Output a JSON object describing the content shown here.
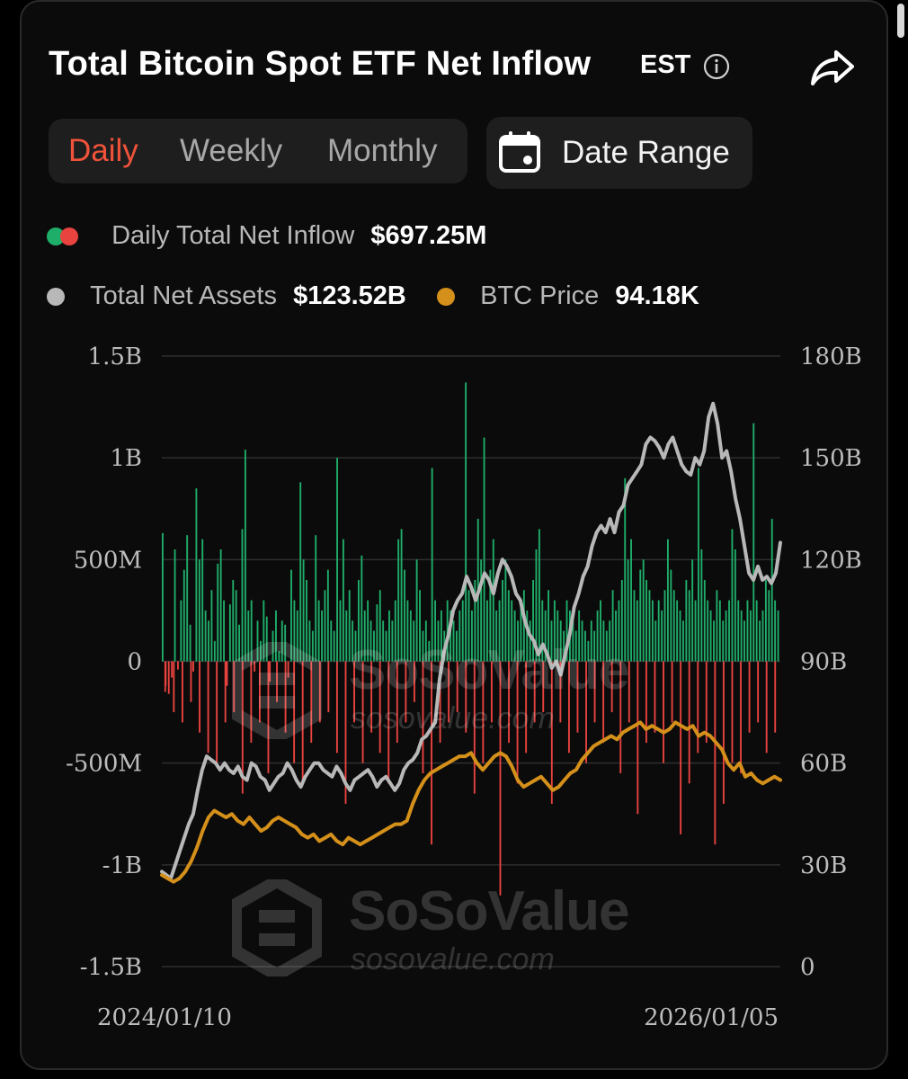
{
  "header": {
    "title": "Total Bitcoin Spot ETF Net Inflow",
    "timezone": "EST"
  },
  "tabs": [
    {
      "label": "Daily",
      "active": true
    },
    {
      "label": "Weekly",
      "active": false
    },
    {
      "label": "Monthly",
      "active": false
    }
  ],
  "date_range": {
    "label": "Date Range"
  },
  "legend": {
    "inflow": {
      "label": "Daily Total Net Inflow",
      "value": "$697.25M"
    },
    "assets": {
      "label": "Total Net Assets",
      "value": "$123.52B"
    },
    "price": {
      "label": "BTC Price",
      "value": "94.18K"
    }
  },
  "watermark": {
    "brand": "SoSoValue",
    "url": "sosovalue.com"
  },
  "colors": {
    "inflow_positive": "#1fae6a",
    "inflow_negative": "#e8433f",
    "net_assets": "#b8b8b8",
    "btc_price": "#d4901a",
    "active_tab": "#f0523a"
  },
  "chart_data": {
    "type": "bar",
    "title": "Total Bitcoin Spot ETF Net Inflow",
    "x_start": "2024/01/10",
    "x_end": "2026/01/05",
    "left_axis": {
      "ticks": [
        "1.5B",
        "1B",
        "500M",
        "0",
        "-500M",
        "-1B",
        "-1.5B"
      ],
      "range": [
        -1.5,
        1.5
      ],
      "unit": "B USD"
    },
    "right_axis": {
      "ticks": [
        "180B",
        "150B",
        "120B",
        "90B",
        "60B",
        "30B",
        "0"
      ],
      "range": [
        0,
        180
      ],
      "unit": "B USD"
    },
    "x_tick_labels": [
      "2024/01/10",
      "2026/01/05"
    ],
    "grid": true,
    "series": [
      {
        "name": "Daily Total Net Inflow",
        "kind": "bar",
        "axis": "left",
        "values": [
          0.63,
          -0.12,
          -0.16,
          -0.08,
          0.55,
          -0.04,
          0.3,
          0.45,
          0.62,
          0.18,
          -0.05,
          0.85,
          0.5,
          0.6,
          0.25,
          0.2,
          0.35,
          0.1,
          0.48,
          0.55,
          0.3,
          -0.12,
          0.28,
          0.4,
          0.35,
          0.18,
          0.65,
          1.04,
          0.25,
          0.3,
          -0.05,
          0.2,
          0.1,
          0.3,
          0.22,
          -0.1,
          0.15,
          0.25,
          0.05,
          0.2,
          0.18,
          -0.08,
          0.45,
          0.3,
          0.25,
          0.88,
          0.5,
          0.4,
          0.2,
          0.15,
          0.62,
          0.3,
          0.25,
          0.35,
          0.45,
          0.2,
          0.15,
          1.0,
          0.3,
          0.6,
          0.25,
          0.35,
          0.2,
          0.15,
          0.4,
          0.52,
          0.25,
          0.3,
          0.2,
          0.15,
          0.28,
          0.35,
          0.2,
          0.15,
          0.25,
          0.2,
          0.3,
          0.6,
          0.65,
          0.45,
          0.3,
          0.25,
          0.2,
          0.5,
          0.35,
          0.15,
          0.2,
          0.1,
          0.95,
          0.3,
          0.2,
          0.25,
          0.15,
          0.3,
          0.25,
          0.2,
          0.15,
          0.25,
          0.3,
          1.37,
          0.35,
          0.25,
          0.4,
          0.7,
          0.5,
          1.1,
          0.3,
          0.45,
          0.6,
          0.25,
          0.3,
          0.4,
          0.5,
          0.35,
          0.3,
          0.25,
          0.2,
          0.3,
          0.35,
          0.25,
          0.2,
          0.4,
          0.55,
          0.65,
          0.3,
          0.25,
          0.35,
          0.2,
          0.3,
          0.25,
          0.2,
          0.15,
          0.3,
          0.25,
          0.2,
          0.15,
          0.25,
          0.2,
          0.15,
          0.1,
          0.2,
          0.15,
          0.25,
          0.3,
          0.2,
          0.15,
          0.2,
          0.35,
          0.25,
          0.3,
          0.4,
          0.9,
          0.5,
          0.6,
          0.35,
          0.3,
          0.45,
          0.5,
          0.4,
          0.35,
          0.3,
          0.2,
          0.3,
          0.25,
          0.35,
          0.6,
          0.45,
          0.35,
          0.3,
          0.25,
          0.2,
          0.4,
          0.35,
          0.5,
          0.3,
          0.95,
          0.55,
          0.4,
          0.3,
          0.25,
          0.2,
          0.35,
          0.3,
          0.2,
          0.25,
          0.3,
          0.65,
          0.55,
          0.3,
          0.25,
          0.2,
          0.3,
          0.25,
          1.17,
          0.3,
          0.2,
          0.25,
          0.4,
          0.35,
          0.7,
          0.3,
          0.25
        ],
        "negatives": [
          -0.15,
          -0.25,
          -0.3,
          -0.2,
          -0.35,
          -0.45,
          -0.5,
          -0.3,
          -0.25,
          -0.65,
          -0.4,
          -0.3,
          -0.55,
          -0.2,
          -0.35,
          -0.5,
          -0.6,
          -0.4,
          -0.3,
          -0.25,
          -0.45,
          -0.7,
          -0.3,
          -0.5,
          -0.35,
          -0.45,
          -0.6,
          -0.4,
          -0.3,
          -0.2,
          -0.55,
          -0.9,
          -0.4,
          -0.3,
          -0.25,
          -0.35,
          -0.65,
          -0.5,
          -0.3,
          -1.15,
          -0.4,
          -0.6,
          -0.45,
          -0.3,
          -0.25,
          -0.7,
          -0.3,
          -0.45,
          -0.35,
          -0.5,
          -0.3,
          -0.4,
          -0.25,
          -0.55,
          -0.3,
          -0.75,
          -0.4,
          -0.35,
          -0.5,
          -0.3,
          -0.85,
          -0.6,
          -0.45,
          -0.4,
          -0.9,
          -0.7,
          -0.5,
          -0.55,
          -0.35,
          -0.3,
          -0.45,
          -0.35
        ]
      },
      {
        "name": "Total Net Assets",
        "kind": "line",
        "axis": "right",
        "values": [
          28,
          27,
          26,
          30,
          34,
          38,
          42,
          45,
          52,
          58,
          62,
          61,
          60,
          58,
          60,
          58,
          57,
          59,
          56,
          55,
          60,
          59,
          56,
          55,
          52,
          54,
          56,
          57,
          60,
          58,
          55,
          53,
          56,
          58,
          60,
          60,
          58,
          57,
          56,
          59,
          57,
          54,
          52,
          55,
          56,
          57,
          58,
          56,
          53,
          55,
          56,
          54,
          52,
          54,
          58,
          60,
          61,
          63,
          67,
          68,
          70,
          72,
          85,
          93,
          98,
          105,
          108,
          110,
          115,
          112,
          108,
          112,
          116,
          114,
          110,
          116,
          120,
          118,
          115,
          110,
          108,
          102,
          98,
          96,
          92,
          95,
          92,
          88,
          90,
          86,
          92,
          98,
          106,
          110,
          115,
          118,
          124,
          128,
          130,
          128,
          132,
          128,
          134,
          136,
          142,
          144,
          146,
          148,
          154,
          156,
          155,
          153,
          150,
          154,
          156,
          152,
          148,
          146,
          145,
          150,
          148,
          152,
          162,
          166,
          160,
          150,
          152,
          146,
          138,
          132,
          124,
          116,
          114,
          118,
          114,
          115,
          113,
          116,
          125
        ]
      },
      {
        "name": "BTC Price",
        "kind": "line",
        "axis": "right",
        "values": [
          27,
          26,
          25,
          26,
          28,
          31,
          35,
          40,
          44,
          46,
          45,
          44,
          45,
          43,
          42,
          44,
          42,
          40,
          41,
          43,
          44,
          43,
          42,
          41,
          39,
          38,
          39,
          37,
          38,
          39,
          37,
          36,
          38,
          37,
          36,
          37,
          38,
          39,
          40,
          41,
          42,
          42,
          43,
          48,
          52,
          55,
          57,
          58,
          59,
          60,
          61,
          62,
          62,
          63,
          60,
          58,
          60,
          62,
          63,
          62,
          59,
          55,
          53,
          54,
          55,
          56,
          54,
          52,
          53,
          55,
          57,
          58,
          61,
          63,
          65,
          66,
          67,
          68,
          67,
          69,
          70,
          71,
          72,
          70,
          71,
          70,
          69,
          70,
          72,
          71,
          70,
          71,
          68,
          69,
          68,
          66,
          64,
          60,
          58,
          60,
          56,
          57,
          55,
          54,
          55,
          56,
          55
        ]
      }
    ]
  }
}
